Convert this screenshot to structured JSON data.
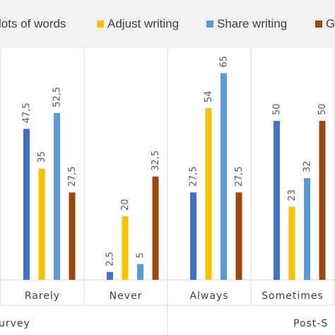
{
  "legend": {
    "items": [
      {
        "label": "lots of words",
        "color": "#4472c4"
      },
      {
        "label": "Adjust writing",
        "color": "#ffc000"
      },
      {
        "label": "Share writing",
        "color": "#5b9bd5"
      },
      {
        "label": "G",
        "color": "#9e480e"
      }
    ]
  },
  "chart_data": {
    "type": "bar",
    "categories": [
      "Rarely",
      "Never",
      "Always",
      "Sometimes"
    ],
    "groups": [
      "urvey",
      "Post-S"
    ],
    "ylim": [
      0,
      70
    ],
    "grid": false,
    "legend_position": "top",
    "series": [
      {
        "name": "lots of words",
        "color": "#4472c4",
        "values": [
          47.5,
          2.5,
          27.5,
          50
        ]
      },
      {
        "name": "Adjust writing",
        "color": "#ffc000",
        "values": [
          35,
          20,
          54,
          23
        ]
      },
      {
        "name": "Share writing",
        "color": "#5b9bd5",
        "values": [
          52.5,
          5,
          65,
          32
        ]
      },
      {
        "name": "G",
        "color": "#9e480e",
        "values": [
          27.5,
          32.5,
          27.5,
          50
        ]
      }
    ],
    "value_labels": [
      [
        "47,5",
        "2,5",
        "27,5",
        "50"
      ],
      [
        "35",
        "20",
        "54",
        "23"
      ],
      [
        "52,5",
        "5",
        "65",
        "32"
      ],
      [
        "27,5",
        "32,5",
        "27,5",
        "50"
      ]
    ]
  }
}
